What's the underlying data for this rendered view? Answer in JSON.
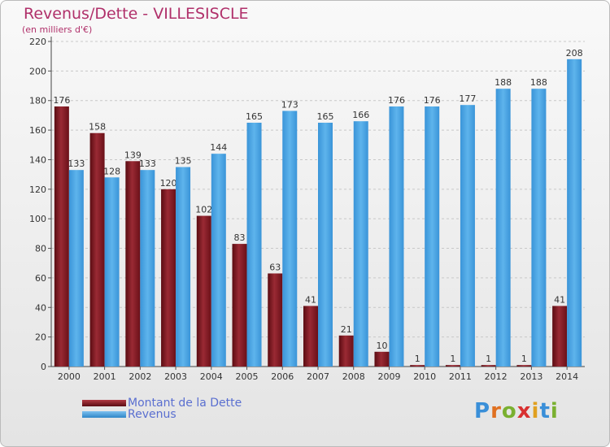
{
  "header": {
    "title": "Revenus/Dette - VILLESISCLE",
    "subtitle": "(en milliers d'€)"
  },
  "legend": {
    "items": [
      {
        "label": "Montant de la Dette",
        "color": "#8b1e28"
      },
      {
        "label": "Revenus",
        "color": "#4ea3e0"
      }
    ]
  },
  "logo": {
    "text": "Proxiti"
  },
  "chart_data": {
    "type": "bar",
    "categories": [
      "2000",
      "2001",
      "2002",
      "2003",
      "2004",
      "2005",
      "2006",
      "2007",
      "2008",
      "2009",
      "2010",
      "2011",
      "2012",
      "2013",
      "2014"
    ],
    "series": [
      {
        "name": "Montant de la Dette",
        "color": "#8b1e28",
        "values": [
          176,
          158,
          139,
          120,
          102,
          83,
          63,
          41,
          21,
          10,
          1,
          1,
          1,
          1,
          41
        ]
      },
      {
        "name": "Revenus",
        "color": "#4ea3e0",
        "values": [
          133,
          128,
          133,
          135,
          144,
          165,
          173,
          165,
          166,
          176,
          176,
          177,
          188,
          188,
          208
        ]
      }
    ],
    "title": "Revenus/Dette - VILLESISCLE",
    "ylabel": "(en milliers d'€)",
    "xlabel": "",
    "ylim": [
      0,
      220
    ],
    "yticks": [
      0,
      20,
      40,
      60,
      80,
      100,
      120,
      140,
      160,
      180,
      200,
      220
    ],
    "grid": true,
    "legend_position": "bottom-left"
  }
}
